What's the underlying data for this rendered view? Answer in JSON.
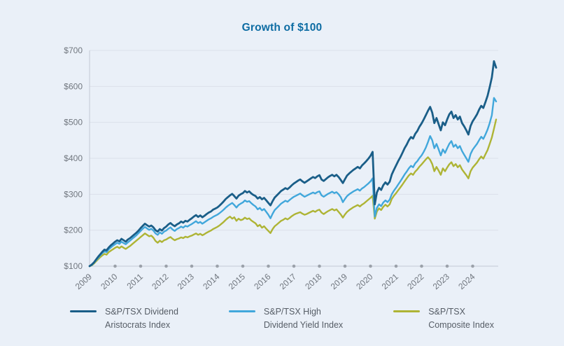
{
  "title": "Growth of $100",
  "chart_data": {
    "type": "line",
    "title": "Growth of $100",
    "x_label": "",
    "y_label": "",
    "x_unit": "year",
    "x_start": 2009,
    "x_step_years": 0.083333,
    "x_range": [
      2009,
      2025
    ],
    "y_range": [
      100,
      700
    ],
    "y_ticks": [
      100,
      200,
      300,
      400,
      500,
      600,
      700
    ],
    "y_tick_prefix": "$",
    "x_ticks": [
      2009,
      2010,
      2011,
      2012,
      2013,
      2014,
      2015,
      2016,
      2017,
      2018,
      2019,
      2020,
      2021,
      2022,
      2023,
      2024
    ],
    "grid": "horizontal",
    "legend_position": "bottom",
    "colors": {
      "background": "#EAF0F8",
      "grid": "#DBE1EA",
      "axis": "#C3C9D3",
      "dot": "#9BA1AA",
      "tick_text": "#71777F",
      "title": "#0D6CA3"
    },
    "series": [
      {
        "name": "S&P/TSX Dividend Aristocrats Index",
        "color": "#1A5E88",
        "width": 2.8,
        "values": [
          100,
          104,
          110,
          118,
          126,
          133,
          140,
          146,
          144,
          152,
          158,
          163,
          168,
          172,
          169,
          176,
          172,
          168,
          174,
          178,
          183,
          188,
          193,
          199,
          206,
          212,
          218,
          214,
          210,
          213,
          208,
          200,
          196,
          203,
          199,
          206,
          210,
          216,
          220,
          215,
          211,
          216,
          219,
          224,
          221,
          226,
          224,
          229,
          233,
          238,
          242,
          237,
          241,
          236,
          240,
          245,
          249,
          252,
          257,
          260,
          263,
          268,
          274,
          280,
          287,
          292,
          297,
          301,
          295,
          288,
          296,
          300,
          303,
          309,
          305,
          308,
          302,
          298,
          295,
          288,
          292,
          286,
          290,
          283,
          276,
          269,
          281,
          291,
          297,
          303,
          309,
          313,
          317,
          314,
          319,
          325,
          330,
          334,
          338,
          341,
          336,
          332,
          336,
          340,
          344,
          348,
          345,
          350,
          353,
          341,
          337,
          342,
          347,
          351,
          354,
          350,
          354,
          348,
          340,
          331,
          342,
          352,
          358,
          363,
          368,
          372,
          376,
          372,
          380,
          386,
          392,
          399,
          407,
          418,
          272,
          305,
          318,
          312,
          325,
          333,
          327,
          335,
          355,
          368,
          380,
          392,
          403,
          415,
          428,
          438,
          450,
          459,
          455,
          468,
          476,
          488,
          497,
          508,
          520,
          532,
          543,
          527,
          498,
          512,
          495,
          478,
          500,
          492,
          508,
          522,
          530,
          512,
          520,
          508,
          516,
          498,
          489,
          478,
          466,
          490,
          503,
          512,
          522,
          535,
          546,
          540,
          556,
          574,
          598,
          625,
          670,
          652
        ]
      },
      {
        "name": "S&P/TSX High Dividend Yield Index",
        "color": "#41A7DB",
        "width": 2.4,
        "values": [
          100,
          103,
          109,
          116,
          123,
          130,
          136,
          141,
          139,
          147,
          152,
          157,
          161,
          165,
          162,
          168,
          164,
          161,
          166,
          171,
          176,
          181,
          186,
          192,
          198,
          204,
          209,
          205,
          201,
          204,
          199,
          191,
          187,
          194,
          190,
          196,
          199,
          204,
          208,
          202,
          198,
          203,
          206,
          210,
          207,
          212,
          210,
          214,
          217,
          221,
          225,
          220,
          223,
          218,
          222,
          226,
          230,
          233,
          237,
          240,
          243,
          247,
          252,
          257,
          263,
          268,
          272,
          276,
          270,
          263,
          270,
          274,
          277,
          283,
          279,
          281,
          275,
          270,
          266,
          258,
          262,
          255,
          259,
          251,
          243,
          233,
          246,
          256,
          262,
          268,
          274,
          278,
          282,
          279,
          284,
          289,
          293,
          296,
          299,
          302,
          297,
          293,
          296,
          299,
          302,
          305,
          302,
          306,
          308,
          297,
          293,
          297,
          301,
          304,
          307,
          303,
          306,
          300,
          292,
          278,
          287,
          295,
          300,
          304,
          308,
          311,
          314,
          310,
          316,
          320,
          325,
          330,
          336,
          344,
          238,
          262,
          272,
          267,
          277,
          283,
          278,
          285,
          300,
          310,
          318,
          327,
          336,
          345,
          355,
          363,
          372,
          379,
          375,
          386,
          392,
          401,
          408,
          418,
          430,
          445,
          462,
          450,
          428,
          440,
          425,
          408,
          425,
          415,
          428,
          440,
          448,
          432,
          438,
          428,
          434,
          420,
          410,
          400,
          390,
          412,
          424,
          432,
          440,
          450,
          460,
          454,
          466,
          480,
          498,
          520,
          568,
          558
        ]
      },
      {
        "name": "S&P/TSX Composite Index",
        "color": "#AEB435",
        "width": 2.4,
        "values": [
          100,
          102,
          107,
          113,
          119,
          125,
          130,
          134,
          132,
          139,
          143,
          147,
          151,
          154,
          150,
          155,
          151,
          148,
          152,
          156,
          161,
          166,
          171,
          176,
          181,
          186,
          191,
          187,
          183,
          185,
          179,
          170,
          165,
          171,
          167,
          172,
          174,
          178,
          181,
          176,
          172,
          175,
          177,
          180,
          178,
          182,
          180,
          183,
          185,
          188,
          191,
          187,
          190,
          186,
          189,
          193,
          196,
          199,
          203,
          206,
          209,
          213,
          218,
          223,
          229,
          234,
          238,
          232,
          236,
          226,
          232,
          228,
          230,
          235,
          231,
          233,
          227,
          223,
          219,
          211,
          215,
          207,
          211,
          204,
          198,
          192,
          203,
          211,
          216,
          221,
          226,
          229,
          233,
          230,
          234,
          239,
          243,
          246,
          248,
          250,
          246,
          243,
          245,
          248,
          251,
          254,
          251,
          255,
          257,
          249,
          245,
          249,
          253,
          256,
          259,
          255,
          258,
          251,
          244,
          235,
          244,
          251,
          256,
          260,
          264,
          267,
          270,
          266,
          271,
          275,
          280,
          285,
          290,
          296,
          232,
          252,
          261,
          256,
          265,
          271,
          266,
          272,
          287,
          296,
          303,
          311,
          319,
          327,
          336,
          344,
          352,
          358,
          354,
          363,
          369,
          377,
          383,
          390,
          397,
          403,
          396,
          384,
          364,
          376,
          366,
          354,
          372,
          364,
          374,
          383,
          389,
          378,
          384,
          375,
          381,
          369,
          361,
          353,
          344,
          364,
          374,
          381,
          388,
          397,
          405,
          399,
          411,
          423,
          440,
          458,
          482,
          508
        ]
      }
    ]
  },
  "legend": {
    "items": [
      {
        "line1": "S&P/TSX Dividend",
        "line2": "Aristocrats Index"
      },
      {
        "line1": "S&P/TSX High",
        "line2": "Dividend Yield Index"
      },
      {
        "line1": "S&P/TSX",
        "line2": "Composite Index"
      }
    ]
  }
}
